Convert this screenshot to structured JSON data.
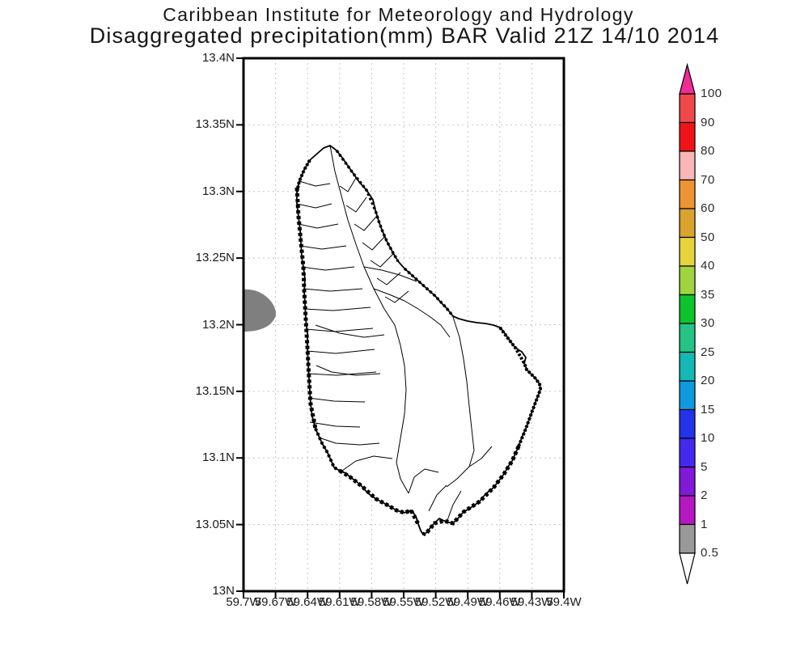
{
  "title": {
    "line1": "Caribbean Institute for Meteorology and Hydrology",
    "line2": "Disaggregated precipitation(mm) BAR Valid 21Z 14/10 2014"
  },
  "map": {
    "y_axis_labels": [
      "13.4N",
      "13.35N",
      "13.3N",
      "13.25N",
      "13.2N",
      "13.15N",
      "13.1N",
      "13.05N",
      "13N"
    ],
    "x_axis_labels": [
      "59.7W",
      "59.67W",
      "59.64W",
      "59.61W",
      "59.58W",
      "59.55W",
      "59.52W",
      "59.49W",
      "59.46W",
      "59.43W",
      "59.4W"
    ],
    "shaded_region": {
      "color": "#7f7f7f"
    }
  },
  "colorbar": {
    "boundary_labels": [
      "100",
      "90",
      "80",
      "70",
      "60",
      "50",
      "40",
      "35",
      "30",
      "25",
      "20",
      "15",
      "10",
      "5",
      "2",
      "1",
      "0.5"
    ],
    "segment_colors": [
      "#f04848",
      "#f01418",
      "#f9b6b6",
      "#ef9434",
      "#d9a32e",
      "#e6d33c",
      "#a0d43e",
      "#0cc52c",
      "#24c487",
      "#14b8b4",
      "#0f9ae0",
      "#2333e8",
      "#4629ef",
      "#8019d8",
      "#b517c1",
      "#999999"
    ],
    "arrow_top_color": "#ee2d96",
    "arrow_bottom_color": "#ffffff"
  },
  "colors": {
    "grid": "#c4c4c4",
    "frame": "#000000",
    "coast": "#000000"
  }
}
